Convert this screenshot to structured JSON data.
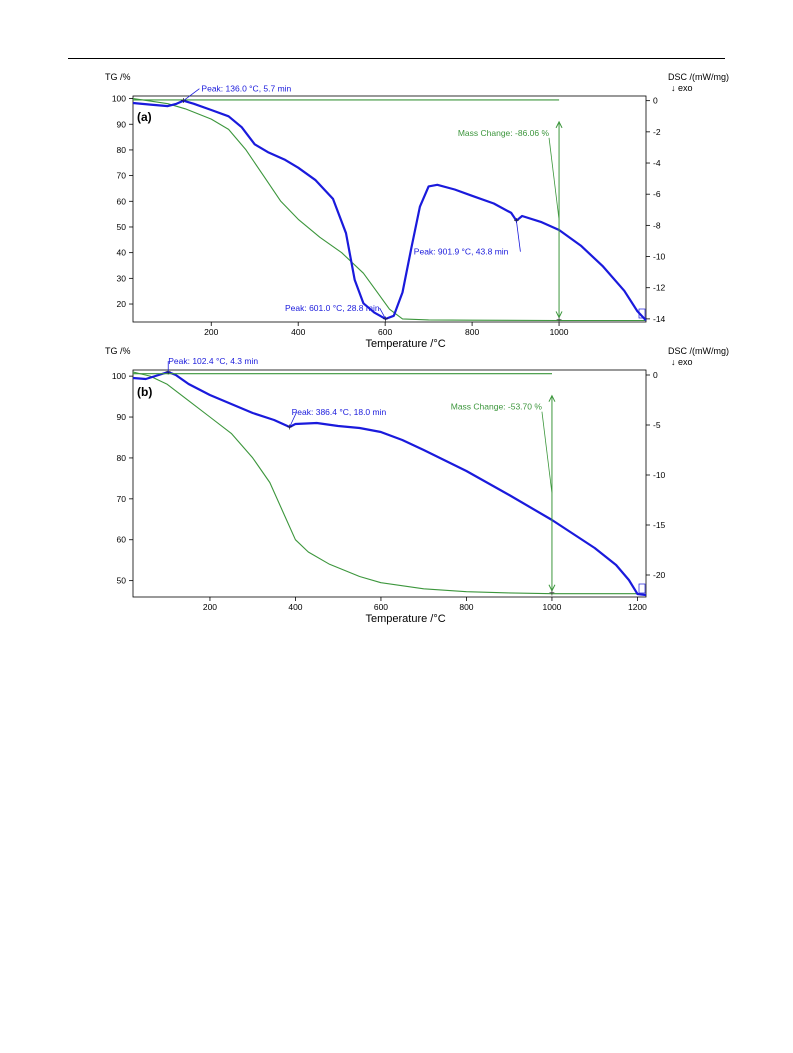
{
  "chart_data": [
    {
      "type": "line",
      "panel_label": "(a)",
      "y_left_label": "TG /%",
      "y_right_label": "DSC /(mW/mg)",
      "y_right_sublabel": "↓ exo",
      "xlabel": "Temperature /°C",
      "xlim": [
        20,
        1200
      ],
      "ylim_left": [
        13,
        101
      ],
      "ylim_right": [
        -14.2,
        0.3
      ],
      "x_ticks": [
        "200",
        "400",
        "600",
        "800",
        "1000"
      ],
      "y_left_ticks": [
        "20",
        "30",
        "40",
        "50",
        "60",
        "70",
        "80",
        "90",
        "100"
      ],
      "y_right_ticks": [
        "0",
        "-2",
        "-4",
        "-6",
        "-8",
        "-10",
        "-12",
        "-14"
      ],
      "colors": {
        "dsc": "#1a1adc",
        "tg": "#3c963c"
      },
      "series": [
        {
          "axis": "left",
          "color": "#3c963c",
          "points": [
            [
              20,
              100
            ],
            [
              60,
              99
            ],
            [
              100,
              98
            ],
            [
              140,
              96
            ],
            [
              200,
              92
            ],
            [
              240,
              88
            ],
            [
              280,
              80
            ],
            [
              320,
              70
            ],
            [
              360,
              60
            ],
            [
              400,
              53
            ],
            [
              450,
              46
            ],
            [
              500,
              40
            ],
            [
              550,
              32
            ],
            [
              580,
              25
            ],
            [
              610,
              18
            ],
            [
              640,
              14.2
            ],
            [
              700,
              13.8
            ],
            [
              800,
              13.7
            ],
            [
              1000,
              13.6
            ],
            [
              1200,
              13.6
            ]
          ]
        },
        {
          "axis": "right",
          "color": "#1a1adc",
          "points": [
            [
              20,
              -0.15
            ],
            [
              60,
              -0.25
            ],
            [
              100,
              -0.35
            ],
            [
              120,
              -0.2
            ],
            [
              136,
              0.0
            ],
            [
              160,
              -0.2
            ],
            [
              200,
              -0.6
            ],
            [
              240,
              -1.0
            ],
            [
              270,
              -1.7
            ],
            [
              300,
              -2.8
            ],
            [
              330,
              -3.3
            ],
            [
              370,
              -3.8
            ],
            [
              400,
              -4.3
            ],
            [
              440,
              -5.1
            ],
            [
              480,
              -6.3
            ],
            [
              510,
              -8.5
            ],
            [
              530,
              -11.5
            ],
            [
              550,
              -13.0
            ],
            [
              575,
              -13.6
            ],
            [
              601,
              -14.0
            ],
            [
              620,
              -13.8
            ],
            [
              640,
              -12.3
            ],
            [
              660,
              -9.5
            ],
            [
              680,
              -6.8
            ],
            [
              700,
              -5.5
            ],
            [
              720,
              -5.4
            ],
            [
              760,
              -5.7
            ],
            [
              800,
              -6.1
            ],
            [
              850,
              -6.6
            ],
            [
              890,
              -7.2
            ],
            [
              901.9,
              -7.7
            ],
            [
              915,
              -7.4
            ],
            [
              960,
              -7.8
            ],
            [
              1000,
              -8.3
            ],
            [
              1050,
              -9.3
            ],
            [
              1100,
              -10.6
            ],
            [
              1150,
              -12.2
            ],
            [
              1180,
              -13.5
            ],
            [
              1200,
              -14.1
            ]
          ]
        },
        {
          "axis": "left",
          "color": "#3c963c",
          "points": [
            [
              20,
              99.5
            ],
            [
              1000,
              99.5
            ]
          ]
        }
      ],
      "annotations": [
        {
          "text": "Peak: 136.0 °C, 5.7 min",
          "x": 136.0,
          "y": 0.0,
          "axis": "right",
          "color": "#1a1adc"
        },
        {
          "text": "Peak: 601.0 °C, 28.8 min",
          "x": 601.0,
          "y": -14.0,
          "axis": "right",
          "color": "#1a1adc"
        },
        {
          "text": "Peak: 901.9 °C, 43.8 min",
          "x": 901.9,
          "y": -7.7,
          "axis": "right",
          "color": "#1a1adc"
        },
        {
          "text": "Mass Change: -86.06 %",
          "x": 1000,
          "y_top": 99.5,
          "y_bottom": 13.6,
          "color": "#3c963c"
        }
      ]
    },
    {
      "type": "line",
      "panel_label": "(b)",
      "y_left_label": "TG /%",
      "y_right_label": "DSC /(mW/mg)",
      "y_right_sublabel": "↓ exo",
      "xlabel": "Temperature /°C",
      "xlim": [
        20,
        1220
      ],
      "ylim_left": [
        46,
        101.5
      ],
      "ylim_right": [
        -22.2,
        0.5
      ],
      "x_ticks": [
        "200",
        "400",
        "600",
        "800",
        "1000",
        "1200"
      ],
      "y_left_ticks": [
        "50",
        "60",
        "70",
        "80",
        "90",
        "100"
      ],
      "y_right_ticks": [
        "0",
        "-5",
        "-10",
        "-15",
        "-20"
      ],
      "colors": {
        "dsc": "#1a1adc",
        "tg": "#3c963c"
      },
      "series": [
        {
          "axis": "left",
          "color": "#3c963c",
          "points": [
            [
              20,
              101
            ],
            [
              60,
              100
            ],
            [
              100,
              98
            ],
            [
              150,
              94
            ],
            [
              200,
              90
            ],
            [
              250,
              86
            ],
            [
              300,
              80
            ],
            [
              340,
              74
            ],
            [
              370,
              67
            ],
            [
              400,
              60
            ],
            [
              430,
              57
            ],
            [
              480,
              54
            ],
            [
              550,
              51
            ],
            [
              600,
              49.5
            ],
            [
              700,
              48
            ],
            [
              800,
              47.3
            ],
            [
              900,
              47
            ],
            [
              1000,
              46.8
            ],
            [
              1200,
              46.8
            ]
          ]
        },
        {
          "axis": "right",
          "color": "#1a1adc",
          "points": [
            [
              20,
              -0.3
            ],
            [
              50,
              -0.4
            ],
            [
              80,
              0.0
            ],
            [
              102.4,
              0.3
            ],
            [
              120,
              0.0
            ],
            [
              150,
              -0.9
            ],
            [
              200,
              -2.0
            ],
            [
              250,
              -2.9
            ],
            [
              300,
              -3.8
            ],
            [
              350,
              -4.5
            ],
            [
              386.4,
              -5.2
            ],
            [
              400,
              -4.9
            ],
            [
              450,
              -4.8
            ],
            [
              500,
              -5.1
            ],
            [
              550,
              -5.3
            ],
            [
              600,
              -5.7
            ],
            [
              650,
              -6.5
            ],
            [
              700,
              -7.5
            ],
            [
              800,
              -9.6
            ],
            [
              900,
              -12.0
            ],
            [
              1000,
              -14.5
            ],
            [
              1100,
              -17.3
            ],
            [
              1150,
              -19.0
            ],
            [
              1180,
              -20.5
            ],
            [
              1200,
              -21.9
            ],
            [
              1220,
              -22.0
            ]
          ]
        },
        {
          "axis": "left",
          "color": "#3c963c",
          "points": [
            [
              20,
              100.6
            ],
            [
              1000,
              100.6
            ]
          ]
        }
      ],
      "annotations": [
        {
          "text": "Peak: 102.4 °C, 4.3 min",
          "x": 102.4,
          "y": 0.3,
          "axis": "right",
          "color": "#1a1adc"
        },
        {
          "text": "Peak: 386.4 °C, 18.0 min",
          "x": 386.4,
          "y": -5.2,
          "axis": "right",
          "color": "#1a1adc"
        },
        {
          "text": "Mass Change: -53.70 %",
          "x": 1000,
          "y_top": 100.6,
          "y_bottom": 46.8,
          "color": "#3c963c"
        }
      ]
    }
  ]
}
